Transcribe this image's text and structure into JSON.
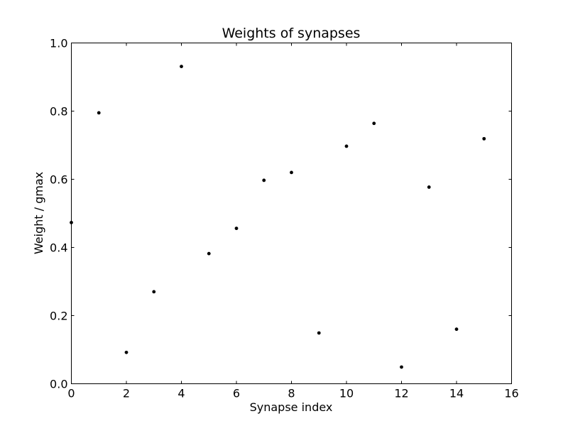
{
  "chart_data": {
    "type": "scatter",
    "title": "Weights of synapses",
    "xlabel": "Synapse index",
    "ylabel": "Weight / gmax",
    "xlim": [
      0,
      16
    ],
    "ylim": [
      0,
      1.0
    ],
    "xticks": [
      "0",
      "2",
      "4",
      "6",
      "8",
      "10",
      "12",
      "14",
      "16"
    ],
    "yticks": [
      "0.0",
      "0.2",
      "0.4",
      "0.6",
      "0.8",
      "1.0"
    ],
    "grid": false,
    "marker_color": "#000000",
    "series": [
      {
        "x": [
          0,
          1,
          2,
          3,
          4,
          5,
          6,
          7,
          8,
          9,
          10,
          11,
          12,
          13,
          14,
          15
        ],
        "y": [
          0.473,
          0.795,
          0.092,
          0.27,
          0.931,
          0.382,
          0.456,
          0.597,
          0.62,
          0.149,
          0.697,
          0.764,
          0.049,
          0.577,
          0.16,
          0.719
        ]
      }
    ]
  }
}
